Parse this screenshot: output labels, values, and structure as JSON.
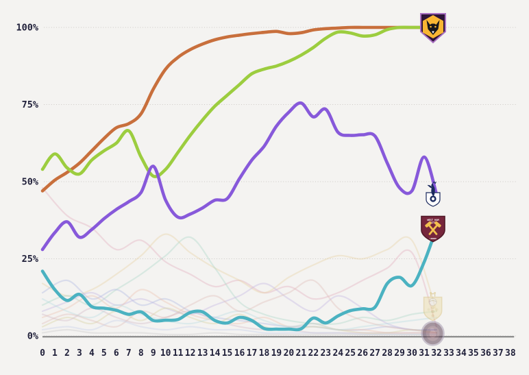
{
  "page": {
    "background_color": "#f4f3f1",
    "text_color": "#20203a"
  },
  "chart_data": {
    "type": "line",
    "title": "",
    "xlabel": "",
    "ylabel": "",
    "start_mw": 0,
    "x_axis": {
      "ticks": [
        0,
        1,
        2,
        3,
        4,
        5,
        6,
        7,
        8,
        9,
        10,
        11,
        12,
        13,
        14,
        15,
        16,
        17,
        18,
        19,
        20,
        21,
        22,
        23,
        24,
        25,
        26,
        27,
        28,
        29,
        30,
        31,
        32,
        33,
        34,
        35,
        36,
        37,
        38
      ]
    },
    "y_axis": {
      "ticks": [
        {
          "label": "0%",
          "value": 0
        },
        {
          "label": "25%",
          "value": 25
        },
        {
          "label": "50%",
          "value": 50
        },
        {
          "label": "75%",
          "value": 75
        },
        {
          "label": "100%",
          "value": 100
        }
      ]
    },
    "grid": "horizontal-dotted",
    "legend": "none",
    "series": [
      {
        "id": "orange",
        "logo": "wolves",
        "color": "#c86f3c",
        "values": [
          47,
          50.5,
          53,
          56,
          60,
          64,
          67.5,
          68.8,
          72,
          80,
          86.5,
          90.3,
          92.8,
          94.6,
          96,
          96.9,
          97.5,
          98,
          98.4,
          98.7,
          98,
          98.3,
          99.2,
          99.6,
          99.8,
          100,
          100,
          100,
          100,
          100,
          100,
          100,
          100
        ]
      },
      {
        "id": "green",
        "logo": null,
        "color": "#9ccd3f",
        "values": [
          54,
          59,
          54.5,
          52.5,
          57,
          60,
          62.5,
          66.5,
          58,
          51.8,
          54,
          59.5,
          65,
          70,
          74.5,
          78,
          81.5,
          85,
          86.5,
          87.5,
          89,
          91,
          93.5,
          96.5,
          98.5,
          98.2,
          97.2,
          97.6,
          99.3,
          100,
          100,
          100,
          100
        ]
      },
      {
        "id": "purple",
        "logo": "tottenham",
        "color": "#8759da",
        "values": [
          28,
          33.5,
          37,
          32,
          34.5,
          38,
          41,
          43.5,
          46.5,
          55,
          44,
          38.5,
          39.5,
          41.5,
          44,
          44.5,
          51,
          57,
          61.5,
          68,
          72.5,
          75.5,
          71,
          73.5,
          66,
          65,
          65.2,
          64.8,
          56,
          48,
          47,
          58,
          46
        ]
      },
      {
        "id": "teal",
        "logo": "west-ham",
        "color": "#4bb2c1",
        "values": [
          21,
          15,
          11.5,
          13.5,
          9.5,
          9,
          8.3,
          7,
          7.8,
          5,
          5.1,
          5.3,
          7.6,
          7.8,
          5,
          4.2,
          6,
          5,
          2.4,
          2.2,
          2.2,
          2.3,
          5.8,
          4.2,
          6.5,
          8.2,
          8.8,
          9.3,
          17,
          19,
          16.3,
          24,
          35
        ]
      }
    ],
    "background_series": [
      {
        "id": "rose",
        "color": "#e3aebd",
        "sampled_every": 2,
        "values": [
          48,
          39,
          35,
          28,
          31,
          24,
          20,
          16,
          18,
          14,
          16,
          12,
          14,
          18,
          22,
          27,
          3
        ]
      },
      {
        "id": "gold",
        "color": "#e7d2a4",
        "sampled_every": 2,
        "values": [
          17,
          13,
          15,
          20,
          26,
          33,
          27,
          22,
          18,
          14,
          19,
          23,
          26,
          25,
          28,
          31,
          8
        ]
      },
      {
        "id": "seafoam",
        "color": "#abd7c8",
        "sampled_every": 2,
        "values": [
          10,
          13,
          10,
          15,
          20,
          26,
          32,
          22,
          11,
          7,
          5,
          4,
          4,
          6,
          5,
          7,
          8
        ]
      },
      {
        "id": "lavender",
        "color": "#c2b5e3",
        "sampled_every": 2,
        "values": [
          8,
          11,
          14,
          10,
          12,
          9,
          7,
          10,
          13,
          17,
          12,
          8,
          13,
          9,
          4,
          2,
          2
        ]
      },
      {
        "id": "periwinkle",
        "color": "#adb9e2",
        "sampled_every": 2,
        "values": [
          14,
          18,
          12,
          15,
          10,
          12,
          8,
          6,
          5,
          4,
          3,
          3,
          2,
          2,
          3,
          2,
          2
        ]
      },
      {
        "id": "salmon",
        "color": "#ecc3b0",
        "sampled_every": 2,
        "values": [
          6,
          9,
          13,
          9,
          15,
          11,
          7,
          5,
          4,
          6,
          3,
          4,
          2,
          2,
          1,
          1,
          1
        ]
      },
      {
        "id": "olive",
        "color": "#d8d1a0",
        "sampled_every": 2,
        "values": [
          3,
          6,
          4,
          8,
          5,
          9,
          6,
          4,
          7,
          3,
          2,
          3,
          2,
          1,
          1,
          2,
          1
        ]
      },
      {
        "id": "mauve",
        "color": "#d2bac9",
        "sampled_every": 2,
        "values": [
          7,
          5,
          9,
          6,
          4,
          6,
          8,
          5,
          3,
          2,
          2,
          1,
          1,
          1,
          1,
          1,
          1
        ]
      },
      {
        "id": "lightteal",
        "color": "#b9dce1",
        "sampled_every": 2,
        "values": [
          12,
          8,
          6,
          10,
          7,
          5,
          4,
          6,
          8,
          5,
          3,
          4,
          2,
          3,
          4,
          5,
          6
        ]
      },
      {
        "id": "dustyrose",
        "color": "#e0bdb8",
        "sampled_every": 2,
        "values": [
          4,
          7,
          5,
          3,
          8,
          6,
          10,
          13,
          8,
          11,
          14,
          18,
          9,
          5,
          3,
          2,
          1
        ]
      },
      {
        "id": "paleblue",
        "color": "#c6d0ea",
        "sampled_every": 2,
        "values": [
          2,
          3,
          2,
          5,
          3,
          2,
          3,
          2,
          2,
          1,
          1,
          1,
          1,
          0.5,
          0.5,
          0.5,
          0.5
        ]
      },
      {
        "id": "palegray",
        "color": "#cbcbcb",
        "sampled_every": 2,
        "values": [
          1,
          2,
          1,
          1,
          1,
          0.5,
          0.5,
          1,
          0.5,
          0.5,
          0.5,
          0.5,
          0.5,
          0.5,
          0.5,
          0.5,
          0.5
        ]
      }
    ],
    "baseline": {
      "value": 0,
      "color": "#8f8f8f",
      "x_start": 0,
      "x_end": 38.3
    },
    "logos": [
      {
        "id": "wolves",
        "series": "orange"
      },
      {
        "id": "tottenham",
        "series": "purple"
      },
      {
        "id": "west-ham",
        "series": "teal",
        "text_lines": [
          "WEST HAM",
          "UNITED",
          "LONDON"
        ]
      },
      {
        "id": "faded-yellow",
        "mw": 31.7,
        "value": 9,
        "opacity": 0.5
      },
      {
        "id": "faded-dark",
        "mw": 31.7,
        "value": 0.8,
        "opacity": 0.5
      }
    ]
  }
}
